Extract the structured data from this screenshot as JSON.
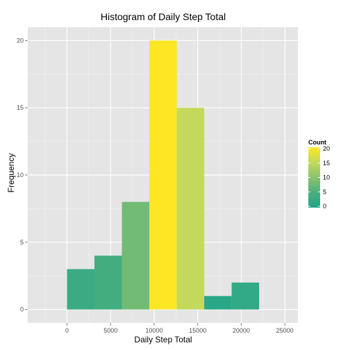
{
  "chart_data": {
    "type": "bar",
    "title": "Histogram of Daily Step Total",
    "xlabel": "Daily Step Total",
    "ylabel": "Frequency",
    "xlim": [
      -4500,
      26500
    ],
    "ylim": [
      -1,
      21
    ],
    "x_ticks": [
      0,
      5000,
      10000,
      15000,
      20000,
      25000
    ],
    "x_tick_labels": [
      "0",
      "5000",
      "10000",
      "15000",
      "20000",
      "25000"
    ],
    "y_ticks": [
      0,
      5,
      10,
      15,
      20
    ],
    "y_tick_labels": [
      "0",
      "5",
      "10",
      "15",
      "20"
    ],
    "bins": [
      {
        "x0": 0,
        "x1": 3150,
        "count": 3
      },
      {
        "x0": 3150,
        "x1": 6300,
        "count": 4
      },
      {
        "x0": 6300,
        "x1": 9450,
        "count": 8
      },
      {
        "x0": 9450,
        "x1": 12600,
        "count": 20
      },
      {
        "x0": 12600,
        "x1": 15750,
        "count": 15
      },
      {
        "x0": 15750,
        "x1": 18900,
        "count": 1
      },
      {
        "x0": 18900,
        "x1": 22050,
        "count": 2
      }
    ],
    "grid": true,
    "legend": {
      "title": "Count",
      "position": "right",
      "range": [
        0,
        20
      ],
      "ticks": [
        0,
        5,
        10,
        15,
        20
      ],
      "tick_labels": [
        "0",
        "5",
        "10",
        "15",
        "20"
      ],
      "colors": [
        "#1fa68a",
        "#4caf7d",
        "#8ac36f",
        "#c2d95c",
        "#fde725"
      ]
    },
    "panel_color": "#e5e5e5",
    "grid_color": "#ffffff"
  }
}
